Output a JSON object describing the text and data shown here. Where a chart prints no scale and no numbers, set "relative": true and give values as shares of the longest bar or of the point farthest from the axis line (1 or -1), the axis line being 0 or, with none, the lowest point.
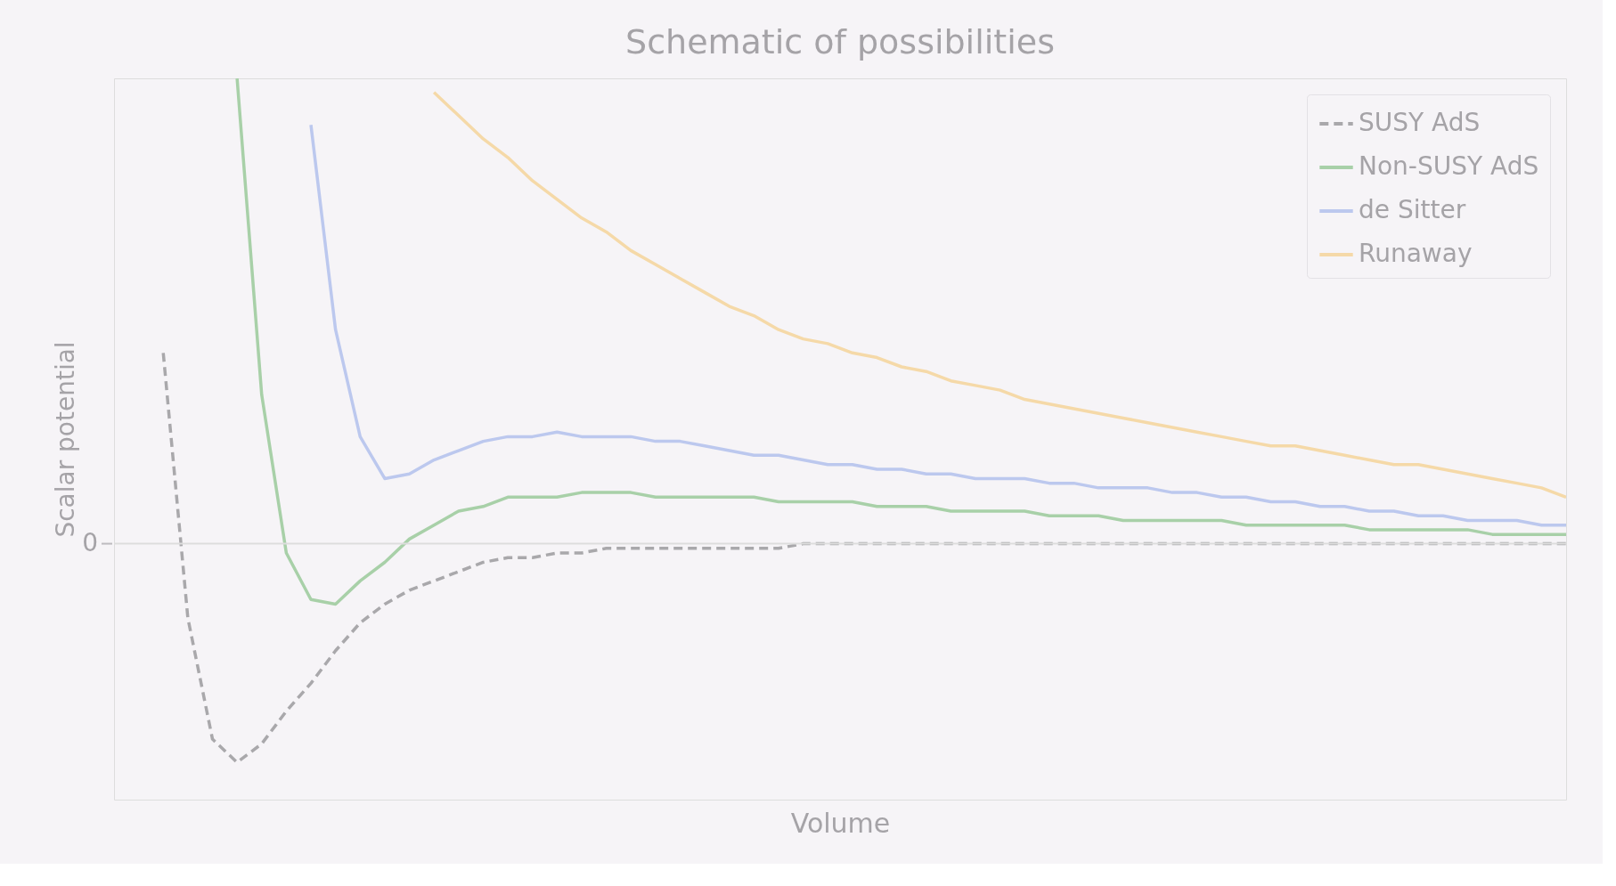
{
  "chart_data": {
    "type": "line",
    "title": "Schematic of possibilities",
    "xlabel": "Volume",
    "ylabel": "Scalar potential",
    "relative": true,
    "categories": [
      null,
      null,
      null,
      null,
      null,
      null,
      null,
      null,
      null,
      null,
      null,
      null,
      null,
      null,
      null,
      null,
      null,
      null,
      null,
      null,
      null,
      null,
      null,
      null,
      null,
      null,
      null,
      null,
      null,
      null,
      null,
      null,
      null,
      null,
      null,
      null,
      null,
      null,
      null,
      null,
      null,
      null,
      null,
      null,
      null,
      null,
      null,
      null,
      null,
      null,
      null,
      null,
      null,
      null,
      null,
      null,
      null,
      null,
      null,
      null
    ],
    "series": [
      {
        "name": "SUSY AdS",
        "color": "#a9a8ab",
        "line_style": "dashed",
        "values": [
          null,
          null,
          0.41,
          -0.16,
          -0.42,
          -0.47,
          -0.43,
          -0.36,
          -0.3,
          -0.23,
          -0.17,
          -0.13,
          -0.1,
          -0.08,
          -0.06,
          -0.04,
          -0.03,
          -0.03,
          -0.02,
          -0.02,
          -0.01,
          -0.01,
          -0.01,
          -0.01,
          -0.01,
          -0.01,
          -0.01,
          -0.01,
          0,
          0,
          0,
          0,
          0,
          0,
          0,
          0,
          0,
          0,
          0,
          0,
          0,
          0,
          0,
          0,
          0,
          0,
          0,
          0,
          0,
          0,
          0,
          0,
          0,
          0,
          0,
          0,
          0,
          0,
          0,
          0
        ]
      },
      {
        "name": "Non-SUSY AdS",
        "color": "#a8d0a8",
        "values": [
          null,
          null,
          null,
          null,
          null,
          1.0,
          0.32,
          -0.02,
          -0.12,
          -0.13,
          -0.08,
          -0.04,
          0.01,
          0.04,
          0.07,
          0.08,
          0.1,
          0.1,
          0.1,
          0.11,
          0.11,
          0.11,
          0.1,
          0.1,
          0.1,
          0.1,
          0.1,
          0.09,
          0.09,
          0.09,
          0.09,
          0.08,
          0.08,
          0.08,
          0.07,
          0.07,
          0.07,
          0.07,
          0.06,
          0.06,
          0.06,
          0.05,
          0.05,
          0.05,
          0.05,
          0.05,
          0.04,
          0.04,
          0.04,
          0.04,
          0.04,
          0.03,
          0.03,
          0.03,
          0.03,
          0.03,
          0.02,
          0.02,
          0.02,
          0.02
        ]
      },
      {
        "name": "de Sitter",
        "color": "#bcc8ee",
        "values": [
          null,
          null,
          null,
          null,
          null,
          null,
          null,
          null,
          0.9,
          0.46,
          0.23,
          0.14,
          0.15,
          0.18,
          0.2,
          0.22,
          0.23,
          0.23,
          0.24,
          0.23,
          0.23,
          0.23,
          0.22,
          0.22,
          0.21,
          0.2,
          0.19,
          0.19,
          0.18,
          0.17,
          0.17,
          0.16,
          0.16,
          0.15,
          0.15,
          0.14,
          0.14,
          0.14,
          0.13,
          0.13,
          0.12,
          0.12,
          0.12,
          0.11,
          0.11,
          0.1,
          0.1,
          0.09,
          0.09,
          0.08,
          0.08,
          0.07,
          0.07,
          0.06,
          0.06,
          0.05,
          0.05,
          0.05,
          0.04,
          0.04
        ]
      },
      {
        "name": "Runaway",
        "color": "#f5d9a8",
        "values": [
          null,
          null,
          null,
          null,
          null,
          null,
          null,
          null,
          null,
          null,
          null,
          null,
          null,
          0.97,
          0.92,
          0.87,
          0.83,
          0.78,
          0.74,
          0.7,
          0.67,
          0.63,
          0.6,
          0.57,
          0.54,
          0.51,
          0.49,
          0.46,
          0.44,
          0.43,
          0.41,
          0.4,
          0.38,
          0.37,
          0.35,
          0.34,
          0.33,
          0.31,
          0.3,
          0.29,
          0.28,
          0.27,
          0.26,
          0.25,
          0.24,
          0.23,
          0.22,
          0.21,
          0.21,
          0.2,
          0.19,
          0.18,
          0.17,
          0.17,
          0.16,
          0.15,
          0.14,
          0.13,
          0.12,
          0.1
        ]
      }
    ],
    "ref_lines": [
      {
        "axis": "y",
        "value": 0,
        "label": "0",
        "color": "#dddddd"
      }
    ],
    "legend": "top right",
    "grid": false
  }
}
